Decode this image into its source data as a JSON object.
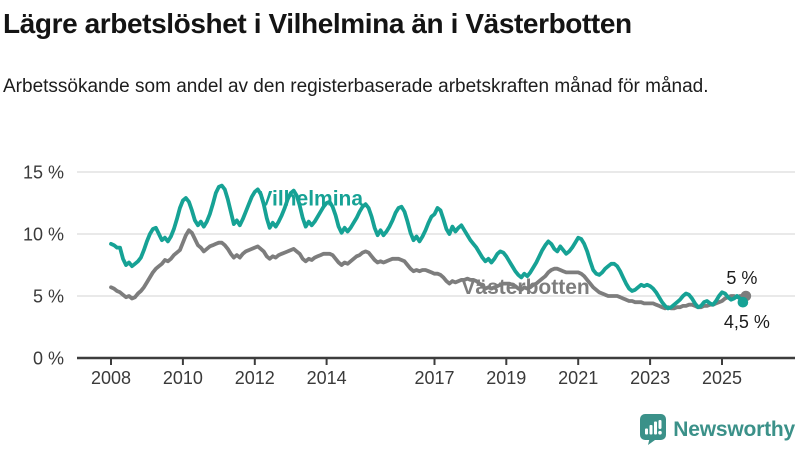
{
  "header": {
    "title": "Lägre arbetslöshet i Vilhelmina än i Västerbotten",
    "subtitle": "Arbetssökande som andel av den registerbaserade arbetskraften månad för månad."
  },
  "footer": {
    "brand": "Newsworthy"
  },
  "colors": {
    "accent_teal": "#16a295",
    "series_gray": "#7d7d7d",
    "brand_teal": "#3b9189",
    "axis": "#3d3d3d",
    "gridline": "#dcdcdc",
    "tick_text": "#3a3a3a",
    "end_label_text": "#1c1c1c"
  },
  "chart_data": {
    "type": "line",
    "title": "Lägre arbetslöshet i Vilhelmina än i Västerbotten",
    "subtitle": "Arbetssökande som andel av den registerbaserade arbetskraften månad för månad.",
    "xlabel": "",
    "ylabel": "",
    "unit": "%",
    "grid": true,
    "legend_position": "inline-labels",
    "ylim": [
      0,
      15
    ],
    "y_ticks": [
      0,
      5,
      10,
      15
    ],
    "y_tick_labels": [
      "0 %",
      "5 %",
      "10 %",
      "15 %"
    ],
    "x_start_year": 2008,
    "x_step_months": 1,
    "x_ticks": [
      2008,
      2010,
      2012,
      2014,
      2017,
      2019,
      2021,
      2023,
      2025
    ],
    "x_tick_labels": [
      "2008",
      "2010",
      "2012",
      "2014",
      "2017",
      "2019",
      "2021",
      "2023",
      "2025"
    ],
    "series": [
      {
        "name": "Västerbotten",
        "color": "#7d7d7d",
        "end_label": "5 %",
        "end_label_side": "above",
        "end_value": 5.0,
        "label_year": 2017.75,
        "label_value": 5.16,
        "values": [
          5.7,
          5.6,
          5.4,
          5.3,
          5.1,
          4.9,
          5.0,
          4.8,
          4.9,
          5.2,
          5.4,
          5.7,
          6.1,
          6.5,
          6.9,
          7.2,
          7.4,
          7.6,
          7.9,
          7.8,
          8.0,
          8.3,
          8.5,
          8.7,
          9.3,
          9.9,
          10.3,
          10.1,
          9.6,
          9.1,
          8.9,
          8.6,
          8.8,
          9.0,
          9.1,
          9.2,
          9.3,
          9.3,
          9.1,
          8.8,
          8.4,
          8.1,
          8.3,
          8.1,
          8.4,
          8.6,
          8.7,
          8.8,
          8.9,
          9.0,
          8.8,
          8.6,
          8.2,
          8.0,
          8.2,
          8.1,
          8.3,
          8.4,
          8.5,
          8.6,
          8.7,
          8.8,
          8.6,
          8.4,
          8.0,
          7.8,
          8.0,
          7.9,
          8.1,
          8.2,
          8.3,
          8.4,
          8.4,
          8.4,
          8.3,
          8.0,
          7.7,
          7.5,
          7.7,
          7.6,
          7.8,
          8.0,
          8.2,
          8.3,
          8.5,
          8.6,
          8.5,
          8.2,
          7.9,
          7.7,
          7.8,
          7.7,
          7.8,
          7.9,
          8.0,
          8.0,
          8.0,
          7.9,
          7.8,
          7.5,
          7.2,
          7.0,
          7.1,
          7.0,
          7.1,
          7.1,
          7.0,
          6.9,
          6.8,
          6.8,
          6.7,
          6.5,
          6.2,
          6.0,
          6.2,
          6.1,
          6.2,
          6.3,
          6.3,
          6.4,
          6.3,
          6.3,
          6.2,
          6.0,
          5.8,
          5.6,
          5.7,
          5.6,
          5.7,
          5.8,
          5.9,
          6.0,
          6.0,
          6.0,
          5.9,
          5.8,
          5.6,
          5.5,
          5.7,
          5.6,
          5.7,
          5.9,
          6.0,
          6.2,
          6.4,
          6.6,
          6.9,
          7.1,
          7.2,
          7.2,
          7.1,
          7.0,
          6.9,
          6.9,
          6.9,
          6.9,
          6.9,
          6.8,
          6.6,
          6.3,
          6.0,
          5.7,
          5.5,
          5.3,
          5.2,
          5.1,
          5.0,
          5.0,
          5.0,
          5.0,
          4.9,
          4.8,
          4.7,
          4.6,
          4.6,
          4.5,
          4.5,
          4.5,
          4.4,
          4.4,
          4.4,
          4.4,
          4.3,
          4.2,
          4.1,
          4.0,
          4.1,
          4.0,
          4.0,
          4.1,
          4.1,
          4.2,
          4.2,
          4.3,
          4.3,
          4.2,
          4.1,
          4.1,
          4.2,
          4.2,
          4.3,
          4.3,
          4.4,
          4.5,
          4.6,
          4.8,
          4.9,
          5.0,
          5.0,
          4.9,
          5.0,
          5.0,
          5.0
        ]
      },
      {
        "name": "Vilhelmina",
        "color": "#16a295",
        "end_label": "4,5 %",
        "end_label_side": "below",
        "end_value": 4.5,
        "label_year": 2012.1,
        "label_value": 12.3,
        "values": [
          9.2,
          9.1,
          8.9,
          8.9,
          8.0,
          7.5,
          7.7,
          7.4,
          7.6,
          7.8,
          8.1,
          8.7,
          9.4,
          10.0,
          10.4,
          10.5,
          10.0,
          9.5,
          9.7,
          9.4,
          9.8,
          10.4,
          11.2,
          12.1,
          12.7,
          12.9,
          12.6,
          11.9,
          11.1,
          10.7,
          11.0,
          10.6,
          11.0,
          11.6,
          12.4,
          13.3,
          13.8,
          13.9,
          13.6,
          12.8,
          11.8,
          10.8,
          11.1,
          10.7,
          11.2,
          11.8,
          12.4,
          13.0,
          13.4,
          13.6,
          13.2,
          12.4,
          11.3,
          10.5,
          10.9,
          10.6,
          11.0,
          11.5,
          12.1,
          12.8,
          13.3,
          13.5,
          13.1,
          12.3,
          11.3,
          10.6,
          11.0,
          10.7,
          11.0,
          11.4,
          11.8,
          12.2,
          12.5,
          12.6,
          12.2,
          11.5,
          10.6,
          10.1,
          10.5,
          10.2,
          10.5,
          10.9,
          11.3,
          11.8,
          12.2,
          12.4,
          12.1,
          11.4,
          10.5,
          9.9,
          10.3,
          9.9,
          10.2,
          10.6,
          11.1,
          11.7,
          12.1,
          12.2,
          11.8,
          11.0,
          10.1,
          9.5,
          9.8,
          9.4,
          9.8,
          10.3,
          10.9,
          11.4,
          11.6,
          12.1,
          11.9,
          11.2,
          10.4,
          10.0,
          10.6,
          10.2,
          10.5,
          10.7,
          10.3,
          9.9,
          9.5,
          9.2,
          8.9,
          8.5,
          8.1,
          7.8,
          8.0,
          7.7,
          8.0,
          8.4,
          8.6,
          8.5,
          8.2,
          7.8,
          7.4,
          7.0,
          6.7,
          6.5,
          6.8,
          6.6,
          6.9,
          7.3,
          7.7,
          8.2,
          8.7,
          9.1,
          9.4,
          9.2,
          8.8,
          8.6,
          9.0,
          8.7,
          8.4,
          8.6,
          8.9,
          9.3,
          9.7,
          9.6,
          9.2,
          8.6,
          7.8,
          7.1,
          6.8,
          6.7,
          6.9,
          7.2,
          7.4,
          7.6,
          7.6,
          7.4,
          7.0,
          6.5,
          6.0,
          5.6,
          5.4,
          5.5,
          5.7,
          5.9,
          5.8,
          5.9,
          5.8,
          5.6,
          5.3,
          4.9,
          4.5,
          4.2,
          4.0,
          4.1,
          4.3,
          4.5,
          4.7,
          5.0,
          5.2,
          5.1,
          4.8,
          4.4,
          4.1,
          4.2,
          4.5,
          4.6,
          4.4,
          4.3,
          4.6,
          5.0,
          5.3,
          5.2,
          4.9,
          4.7,
          4.8,
          5.0,
          4.8,
          4.5
        ]
      }
    ]
  }
}
